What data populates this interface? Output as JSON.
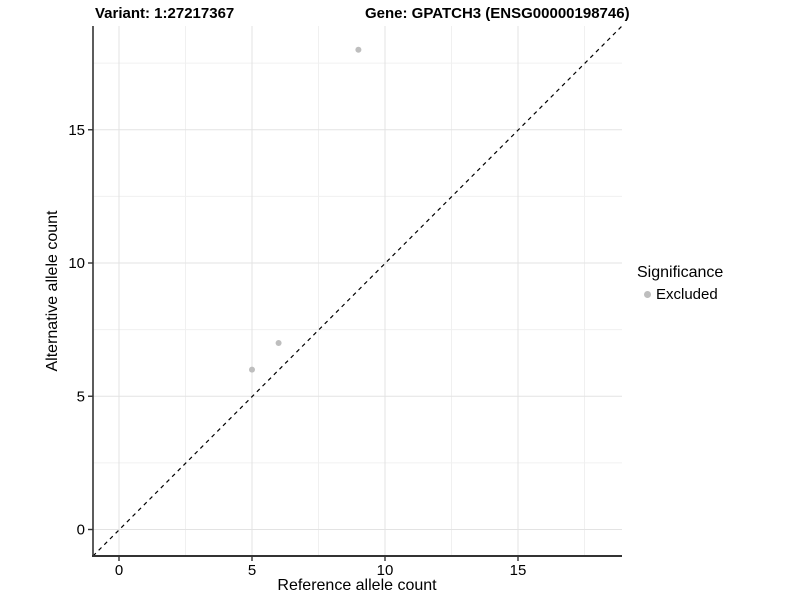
{
  "header": {
    "variant_title": "Variant: 1:27217367",
    "gene_title": "Gene: GPATCH3 (ENSG00000198746)"
  },
  "chart_data": {
    "type": "scatter",
    "title": "Variant: 1:27217367  Gene: GPATCH3 (ENSG00000198746)",
    "xlabel": "Reference allele count",
    "ylabel": "Alternative allele count",
    "xlim": [
      -1,
      18.9
    ],
    "ylim": [
      -1,
      18.9
    ],
    "x_ticks": [
      0,
      5,
      10,
      15
    ],
    "y_ticks": [
      0,
      5,
      10,
      15
    ],
    "x_minor_ticks": [
      2.5,
      7.5,
      12.5,
      17.5
    ],
    "y_minor_ticks": [
      2.5,
      7.5,
      12.5,
      17.5
    ],
    "grid": true,
    "series": [
      {
        "name": "Excluded",
        "color": "#bebebe",
        "points": [
          [
            5,
            6
          ],
          [
            6,
            7
          ],
          [
            9,
            18
          ]
        ]
      }
    ],
    "reference_line": {
      "type": "identity y=x",
      "style": "dashed",
      "from": [
        -1,
        -1
      ],
      "to": [
        18.9,
        18.9
      ],
      "color": "#000000"
    },
    "legend": {
      "title": "Significance",
      "position": "right",
      "items": [
        {
          "label": "Excluded",
          "color": "#bebebe"
        }
      ]
    },
    "colors": {
      "point": "#bebebe",
      "grid_major": "#e3e3e3",
      "grid_minor": "#f0f0f0",
      "axis_line": "#333333",
      "tick_text": "#000000"
    }
  }
}
